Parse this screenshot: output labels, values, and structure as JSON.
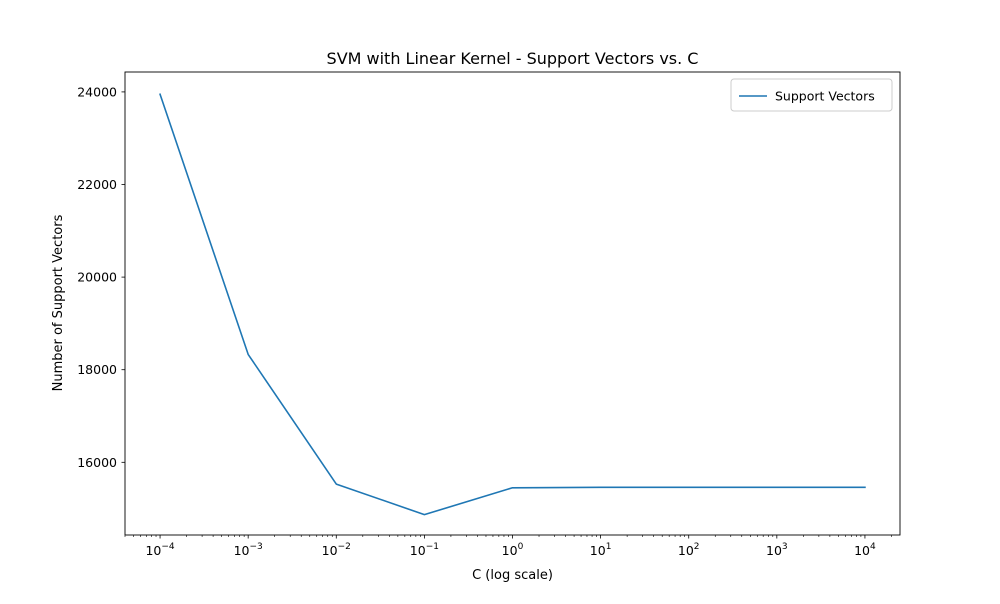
{
  "chart_data": {
    "type": "line",
    "title": "SVM with Linear Kernel - Support Vectors vs. C",
    "xlabel": "C (log scale)",
    "ylabel": "Number of Support Vectors",
    "x_scale": "log",
    "x": [
      0.0001,
      0.001,
      0.01,
      0.1,
      1,
      10,
      100,
      1000,
      10000
    ],
    "x_tick_values": [
      0.0001,
      0.001,
      0.01,
      0.1,
      1,
      10,
      100,
      1000,
      10000
    ],
    "x_tick_labels": [
      {
        "base": "10",
        "exp": "−4"
      },
      {
        "base": "10",
        "exp": "−3"
      },
      {
        "base": "10",
        "exp": "−2"
      },
      {
        "base": "10",
        "exp": "−1"
      },
      {
        "base": "10",
        "exp": "0"
      },
      {
        "base": "10",
        "exp": "1"
      },
      {
        "base": "10",
        "exp": "2"
      },
      {
        "base": "10",
        "exp": "3"
      },
      {
        "base": "10",
        "exp": "4"
      }
    ],
    "y_ticks": [
      16000,
      18000,
      20000,
      22000,
      24000
    ],
    "y_tick_labels": [
      "16000",
      "18000",
      "20000",
      "22000",
      "24000"
    ],
    "xlim": [
      4e-05,
      25000
    ],
    "ylim": [
      14430,
      24430
    ],
    "grid": false,
    "legend_position": "top-right",
    "series": [
      {
        "name": "Support Vectors",
        "color": "#1f77b4",
        "values": [
          23950,
          18330,
          15530,
          14870,
          15450,
          15460,
          15460,
          15460,
          15460
        ]
      }
    ]
  }
}
